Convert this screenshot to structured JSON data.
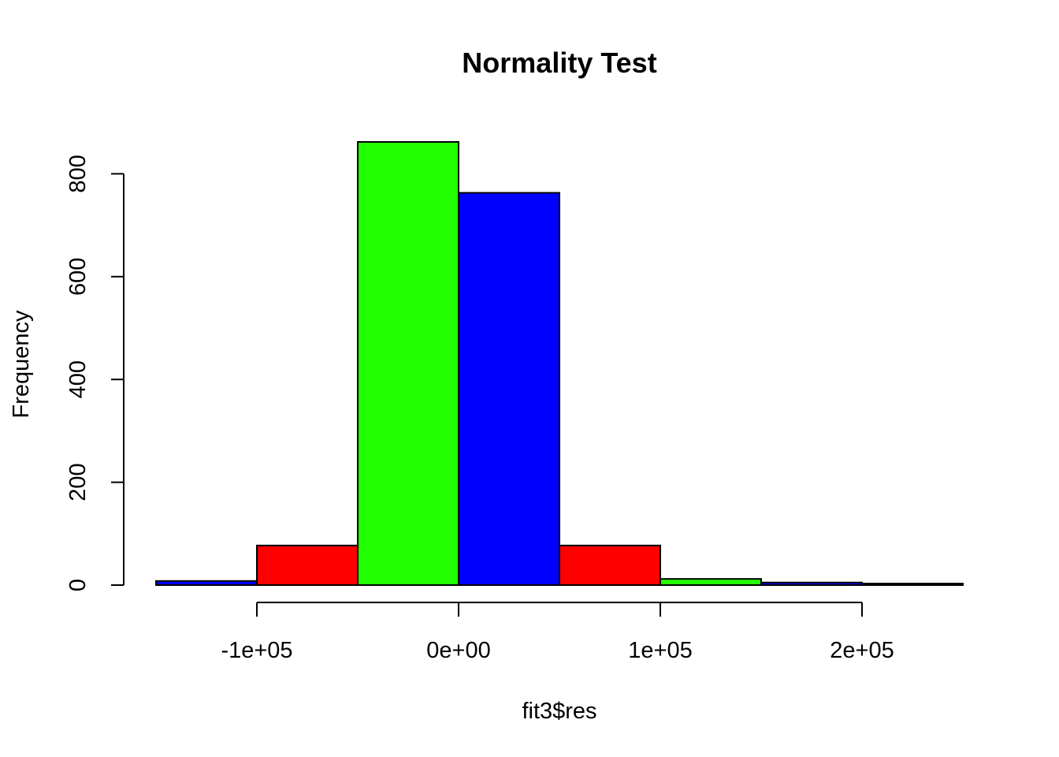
{
  "chart_data": {
    "type": "bar",
    "title": "Normality Test",
    "xlabel": "fit3$res",
    "ylabel": "Frequency",
    "bins": [
      {
        "x0": -150000,
        "x1": -100000,
        "count": 8,
        "color": "#0000ff"
      },
      {
        "x0": -100000,
        "x1": -50000,
        "count": 77,
        "color": "#ff0000"
      },
      {
        "x0": -50000,
        "x1": 0,
        "count": 862,
        "color": "#22ff00"
      },
      {
        "x0": 0,
        "x1": 50000,
        "count": 763,
        "color": "#0000ff"
      },
      {
        "x0": 50000,
        "x1": 100000,
        "count": 77,
        "color": "#ff0000"
      },
      {
        "x0": 100000,
        "x1": 150000,
        "count": 12,
        "color": "#22ff00"
      },
      {
        "x0": 150000,
        "x1": 200000,
        "count": 5,
        "color": "#0000ff"
      },
      {
        "x0": 200000,
        "x1": 250000,
        "count": 3,
        "color": "#ff0000"
      }
    ],
    "xlim": [
      -150000,
      250000
    ],
    "ylim": [
      0,
      862
    ],
    "xticks": [
      {
        "value": -100000,
        "label": "-1e+05"
      },
      {
        "value": 0,
        "label": "0e+00"
      },
      {
        "value": 100000,
        "label": "1e+05"
      },
      {
        "value": 200000,
        "label": "2e+05"
      }
    ],
    "yticks": [
      {
        "value": 0,
        "label": "0"
      },
      {
        "value": 200,
        "label": "200"
      },
      {
        "value": 400,
        "label": "400"
      },
      {
        "value": 600,
        "label": "600"
      },
      {
        "value": 800,
        "label": "800"
      }
    ],
    "grid": false,
    "legend": "none"
  }
}
